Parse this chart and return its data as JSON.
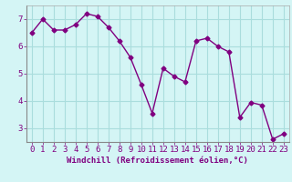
{
  "x": [
    0,
    1,
    2,
    3,
    4,
    5,
    6,
    7,
    8,
    9,
    10,
    11,
    12,
    13,
    14,
    15,
    16,
    17,
    18,
    19,
    20,
    21,
    22,
    23
  ],
  "y": [
    6.5,
    7.0,
    6.6,
    6.6,
    6.8,
    7.2,
    7.1,
    6.7,
    6.2,
    5.6,
    4.6,
    3.55,
    5.2,
    4.9,
    4.7,
    6.2,
    6.3,
    6.0,
    5.8,
    3.4,
    3.95,
    3.85,
    2.6,
    2.8
  ],
  "line_color": "#800080",
  "marker": "D",
  "marker_size": 2.5,
  "bg_color": "#d4f5f5",
  "grid_color": "#aadddd",
  "xlabel": "Windchill (Refroidissement éolien,°C)",
  "xlabel_color": "#800080",
  "xticks": [
    0,
    1,
    2,
    3,
    4,
    5,
    6,
    7,
    8,
    9,
    10,
    11,
    12,
    13,
    14,
    15,
    16,
    17,
    18,
    19,
    20,
    21,
    22,
    23
  ],
  "yticks": [
    3,
    4,
    5,
    6,
    7
  ],
  "ylim": [
    2.5,
    7.5
  ],
  "xlim": [
    -0.5,
    23.5
  ],
  "tick_color": "#800080",
  "axis_label_fontsize": 6.5,
  "tick_fontsize": 6.5
}
